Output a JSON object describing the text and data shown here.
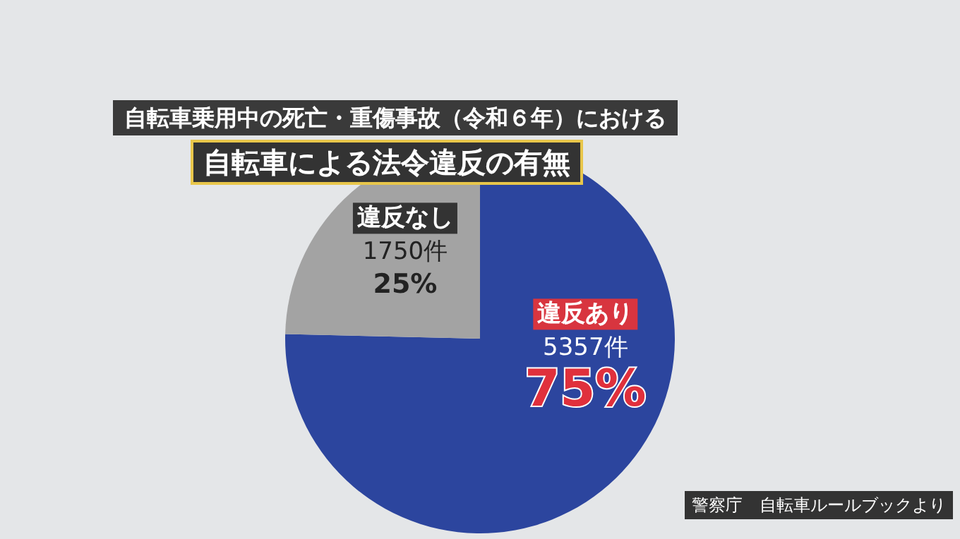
{
  "chart_data": {
    "type": "pie",
    "title": "自転車乗用中の死亡・重傷事故（令和６年）における",
    "subtitle": "自転車による法令違反の有無",
    "categories": [
      "違反あり",
      "違反なし"
    ],
    "values": [
      5357,
      1750
    ],
    "colors": [
      "#2c459e",
      "#a3a3a3"
    ],
    "value_labels": [
      "5357件",
      "1750件"
    ],
    "annotations": [
      {
        "text": "75%",
        "x": "違反あり"
      },
      {
        "text": "25%",
        "x": "違反なし"
      },
      "警察庁　自転車ルールブックより"
    ]
  }
}
